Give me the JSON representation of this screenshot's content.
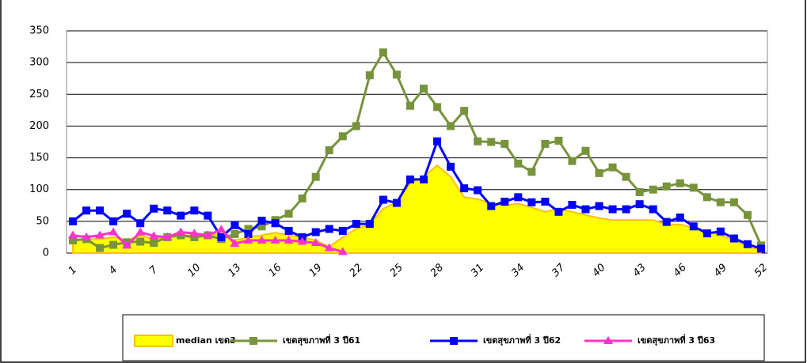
{
  "chart_data": {
    "type": "line",
    "categories": [
      "1",
      null,
      null,
      "4",
      null,
      null,
      "7",
      null,
      null,
      "10",
      null,
      null,
      "13",
      null,
      null,
      "16",
      null,
      null,
      "19",
      null,
      null,
      "22",
      null,
      null,
      "25",
      null,
      null,
      "28",
      null,
      null,
      "31",
      null,
      null,
      "34",
      null,
      null,
      "37",
      null,
      null,
      "40",
      null,
      null,
      "43",
      null,
      null,
      "46",
      null,
      null,
      "49",
      null,
      null,
      "52"
    ],
    "ylim": [
      0,
      350
    ],
    "yticks": [
      0,
      50,
      100,
      150,
      200,
      250,
      300,
      350
    ],
    "grid": true,
    "legend": "bottom",
    "series": [
      {
        "name": "median เขต3",
        "type": "area",
        "color": "#ffff00",
        "edge": "#ffc000",
        "values": [
          20,
          22,
          22,
          25,
          20,
          28,
          22,
          25,
          28,
          28,
          28,
          30,
          20,
          25,
          28,
          32,
          28,
          25,
          20,
          10,
          25,
          38,
          45,
          70,
          80,
          110,
          120,
          138,
          120,
          88,
          85,
          78,
          75,
          78,
          72,
          65,
          70,
          65,
          60,
          55,
          52,
          52,
          52,
          52,
          45,
          45,
          40,
          35,
          28,
          20,
          10,
          5
        ]
      },
      {
        "name": "เขตสุขภาพที่ 3 ปี61",
        "type": "line",
        "marker": "square",
        "color": "#77933c",
        "values": [
          20,
          22,
          8,
          13,
          17,
          18,
          16,
          25,
          28,
          25,
          28,
          22,
          30,
          38,
          42,
          52,
          62,
          86,
          120,
          162,
          184,
          200,
          280,
          316,
          281,
          232,
          259,
          230,
          200,
          224,
          176,
          175,
          172,
          141,
          128,
          172,
          177,
          145,
          161,
          126,
          135,
          120,
          96,
          100,
          105,
          110,
          103,
          88,
          80,
          80,
          60,
          12
        ]
      },
      {
        "name": "เขตสุขภาพที่ 3 ปี62",
        "type": "line",
        "marker": "square",
        "color": "#0000ff",
        "values": [
          50,
          67,
          67,
          50,
          62,
          47,
          70,
          67,
          59,
          67,
          59,
          25,
          44,
          30,
          51,
          47,
          35,
          25,
          33,
          38,
          35,
          46,
          46,
          84,
          79,
          116,
          116,
          176,
          136,
          102,
          99,
          74,
          81,
          88,
          80,
          81,
          65,
          76,
          69,
          74,
          69,
          69,
          77,
          69,
          49,
          56,
          42,
          31,
          34,
          23,
          14,
          7
        ]
      },
      {
        "name": "เขตสุขภาพที่ 3 ปี63",
        "type": "line",
        "marker": "triangle",
        "color": "#ff33cc",
        "values": [
          28,
          25,
          28,
          33,
          12,
          33,
          27,
          25,
          33,
          31,
          28,
          37,
          15,
          20,
          20,
          20,
          20,
          18,
          16,
          8,
          2,
          null,
          null,
          null,
          null,
          null,
          null,
          null,
          null,
          null,
          null,
          null,
          null,
          null,
          null,
          null,
          null,
          null,
          null,
          null,
          null,
          null,
          null,
          null,
          null,
          null,
          null,
          null,
          null,
          null,
          null,
          null
        ]
      }
    ]
  }
}
